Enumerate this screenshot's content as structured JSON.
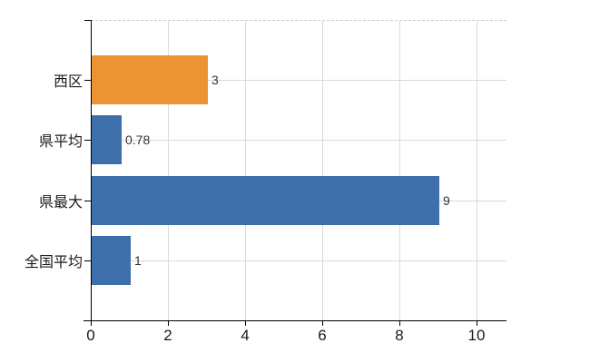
{
  "chart_data": {
    "type": "bar",
    "orientation": "horizontal",
    "title": "",
    "xlabel": "",
    "ylabel": "",
    "categories": [
      "西区",
      "県平均",
      "県最大",
      "全国平均"
    ],
    "values": [
      3,
      0.78,
      9,
      1
    ],
    "value_labels": [
      "3",
      "0.78",
      "9",
      "1"
    ],
    "bar_colors": [
      "#ec9434",
      "#3d6fab",
      "#3d6fab",
      "#3d6fab"
    ],
    "xlim": [
      0,
      10.8
    ],
    "xticks": [
      0,
      2,
      4,
      6,
      8,
      10
    ],
    "grid": true,
    "legend": false
  },
  "colors": {
    "orange_bar": "#ec9434",
    "blue_bar": "#3d6fab",
    "gridline": "#d9d9d9",
    "top_border": "#cccccc",
    "axis": "#000000",
    "label_text": "#1a1a1a",
    "value_text": "#333333",
    "background": "#ffffff"
  }
}
